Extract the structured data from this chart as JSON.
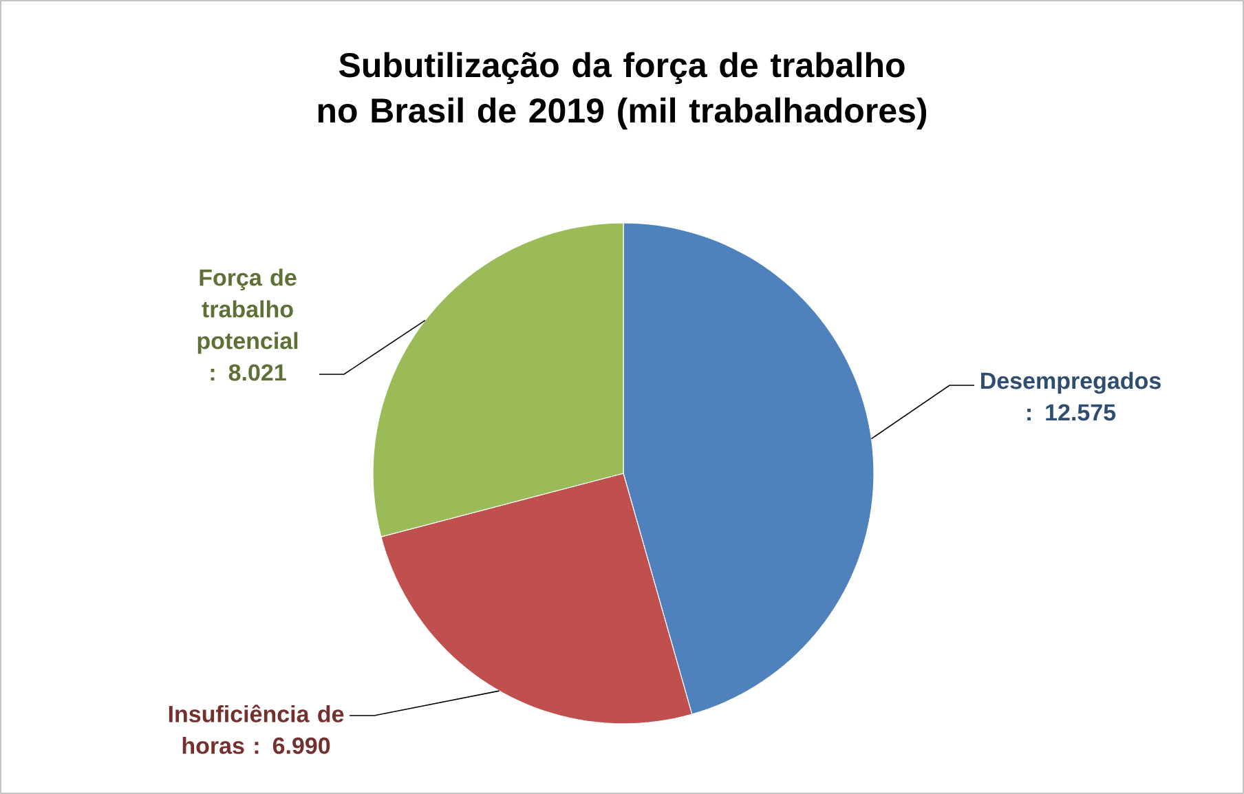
{
  "chart_data": {
    "type": "pie",
    "title": "Subutilização da força de trabalho no Brasil de 2019 (mil trabalhadores)",
    "categories": [
      "Desempregados",
      "Insuficiência de horas",
      "Força de trabalho potencial"
    ],
    "values": [
      12575,
      6990,
      8021
    ],
    "value_labels": [
      ": 12.575",
      ": 6.990",
      ": 8.021"
    ],
    "colors": [
      "#4f81bd",
      "#c0504d",
      "#9bbb59"
    ]
  }
}
